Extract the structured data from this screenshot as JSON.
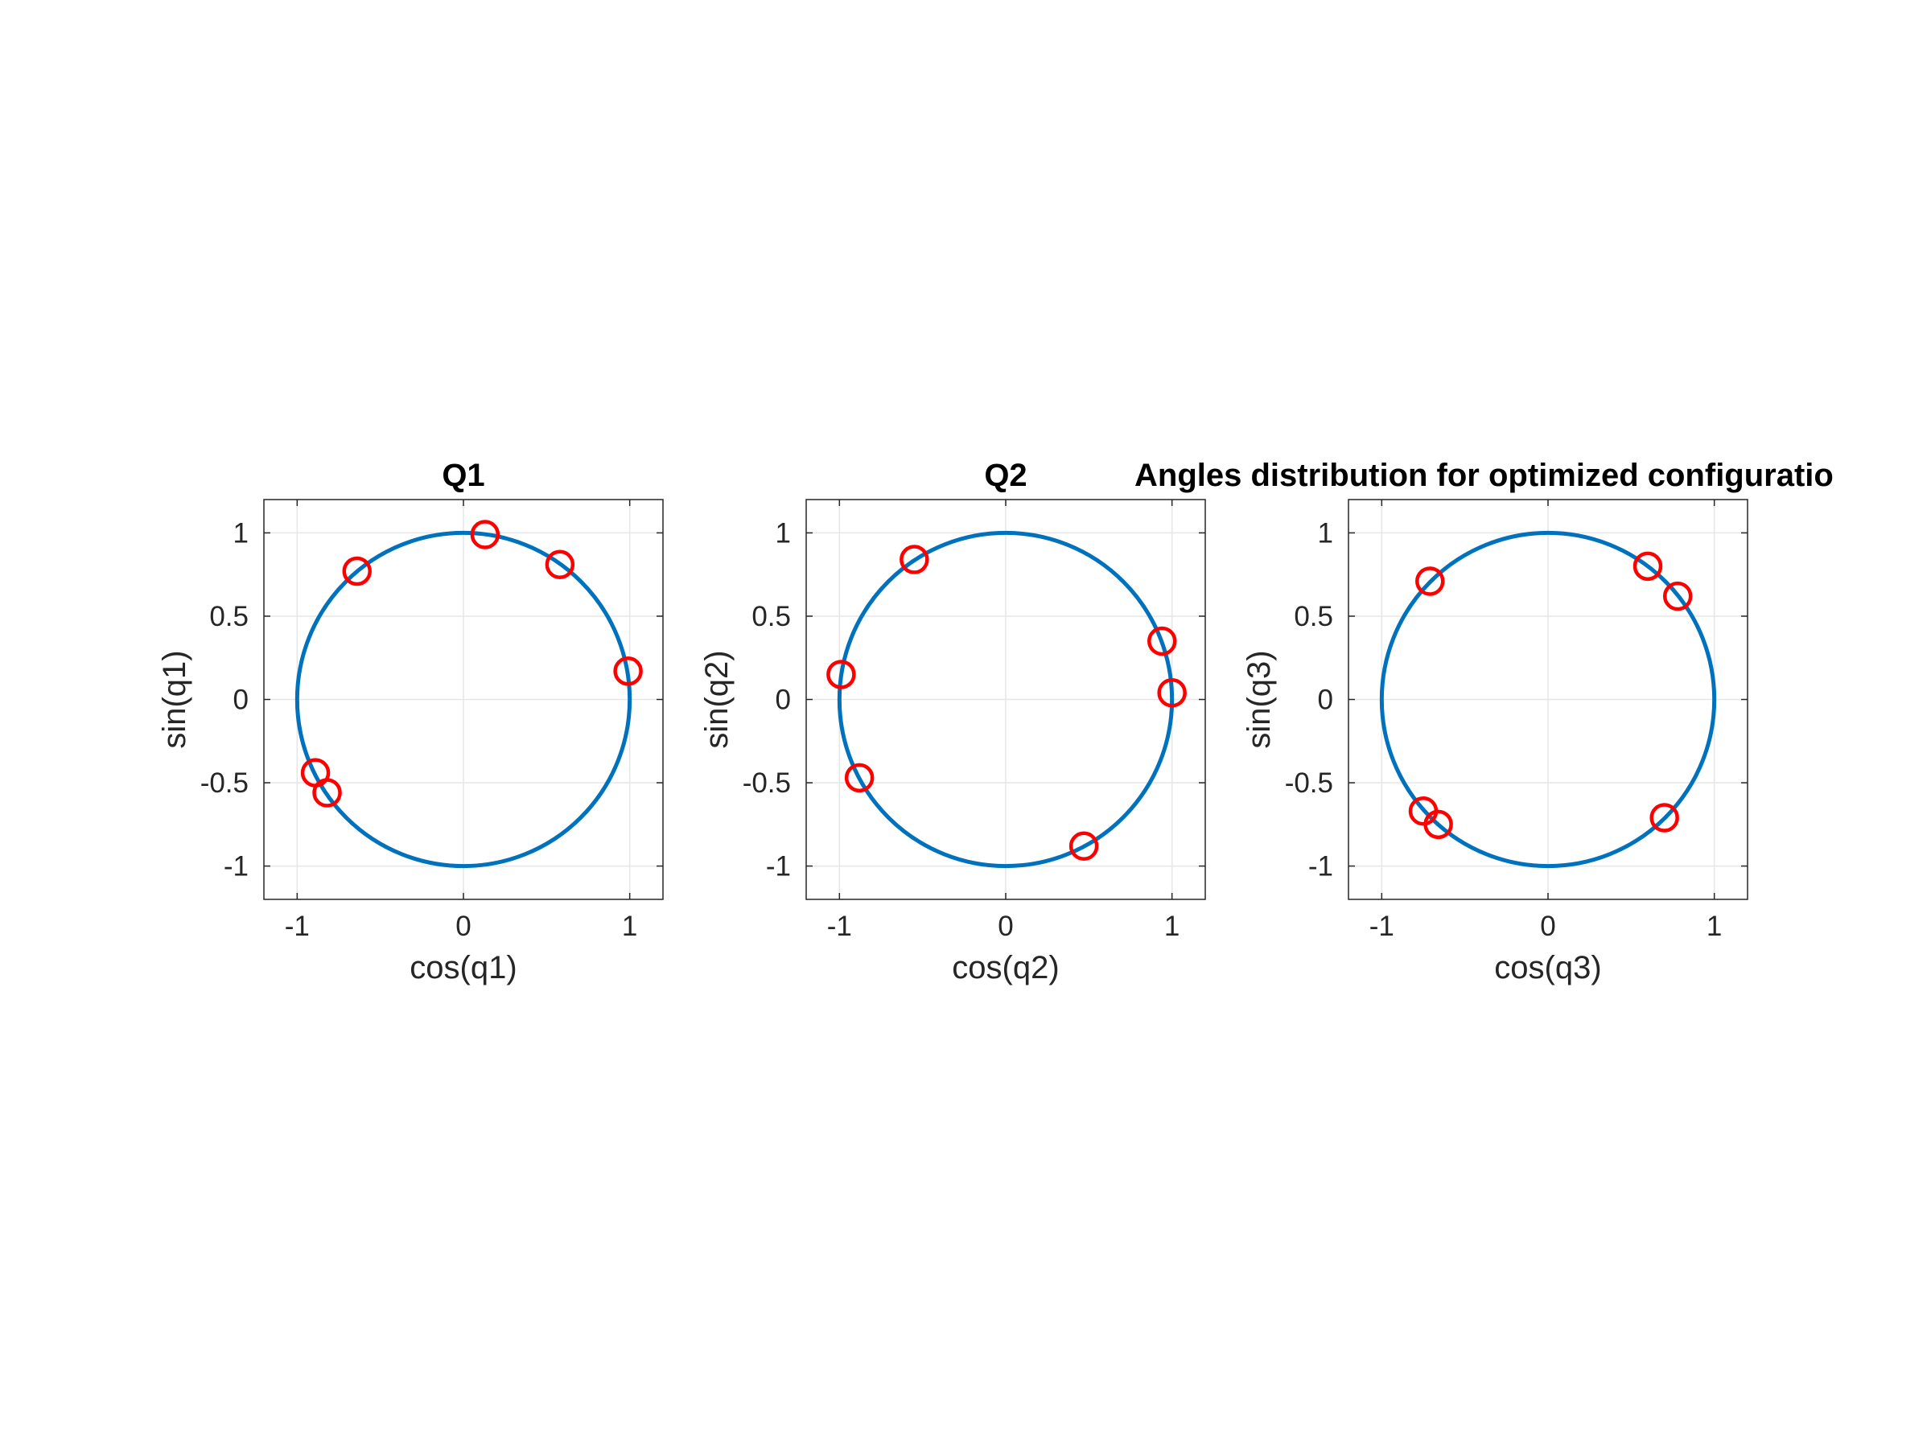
{
  "figure": {
    "overlay_title": "Angles distribution for optimized configuratio"
  },
  "style": {
    "circle_color": "#0072BD",
    "marker_color": "#FF0000",
    "grid_color": "#E6E6E6",
    "axes_color": "#262626"
  },
  "chart_data": [
    {
      "type": "scatter",
      "title": "Q1",
      "xlabel": "cos(q1)",
      "ylabel": "sin(q1)",
      "xlim": [
        -1.2,
        1.2
      ],
      "ylim": [
        -1.2,
        1.2
      ],
      "xticks": [
        -1,
        0,
        1
      ],
      "yticks": [
        -1,
        -0.5,
        0,
        0.5,
        1
      ],
      "xtick_labels": [
        "-1",
        "0",
        "1"
      ],
      "ytick_labels": [
        "-1",
        "-0.5",
        "0",
        "0.5",
        "1"
      ],
      "grid": true,
      "unit_circle": true,
      "points": [
        {
          "x": 0.13,
          "y": 0.99
        },
        {
          "x": 0.58,
          "y": 0.81
        },
        {
          "x": -0.64,
          "y": 0.77
        },
        {
          "x": 0.99,
          "y": 0.17
        },
        {
          "x": -0.89,
          "y": -0.44
        },
        {
          "x": -0.82,
          "y": -0.56
        }
      ]
    },
    {
      "type": "scatter",
      "title": "Q2",
      "xlabel": "cos(q2)",
      "ylabel": "sin(q2)",
      "xlim": [
        -1.2,
        1.2
      ],
      "ylim": [
        -1.2,
        1.2
      ],
      "xticks": [
        -1,
        0,
        1
      ],
      "yticks": [
        -1,
        -0.5,
        0,
        0.5,
        1
      ],
      "xtick_labels": [
        "-1",
        "0",
        "1"
      ],
      "ytick_labels": [
        "-1",
        "-0.5",
        "0",
        "0.5",
        "1"
      ],
      "grid": true,
      "unit_circle": true,
      "points": [
        {
          "x": -0.55,
          "y": 0.84
        },
        {
          "x": -0.99,
          "y": 0.15
        },
        {
          "x": 0.94,
          "y": 0.35
        },
        {
          "x": 1.0,
          "y": 0.04
        },
        {
          "x": -0.88,
          "y": -0.47
        },
        {
          "x": 0.47,
          "y": -0.88
        }
      ]
    },
    {
      "type": "scatter",
      "title": "",
      "xlabel": "cos(q3)",
      "ylabel": "sin(q3)",
      "xlim": [
        -1.2,
        1.2
      ],
      "ylim": [
        -1.2,
        1.2
      ],
      "xticks": [
        -1,
        0,
        1
      ],
      "yticks": [
        -1,
        -0.5,
        0,
        0.5,
        1
      ],
      "xtick_labels": [
        "-1",
        "0",
        "1"
      ],
      "ytick_labels": [
        "-1",
        "-0.5",
        "0",
        "0.5",
        "1"
      ],
      "grid": true,
      "unit_circle": true,
      "points": [
        {
          "x": -0.71,
          "y": 0.71
        },
        {
          "x": 0.6,
          "y": 0.8
        },
        {
          "x": 0.78,
          "y": 0.62
        },
        {
          "x": -0.75,
          "y": -0.67
        },
        {
          "x": -0.66,
          "y": -0.75
        },
        {
          "x": 0.7,
          "y": -0.71
        }
      ]
    }
  ]
}
